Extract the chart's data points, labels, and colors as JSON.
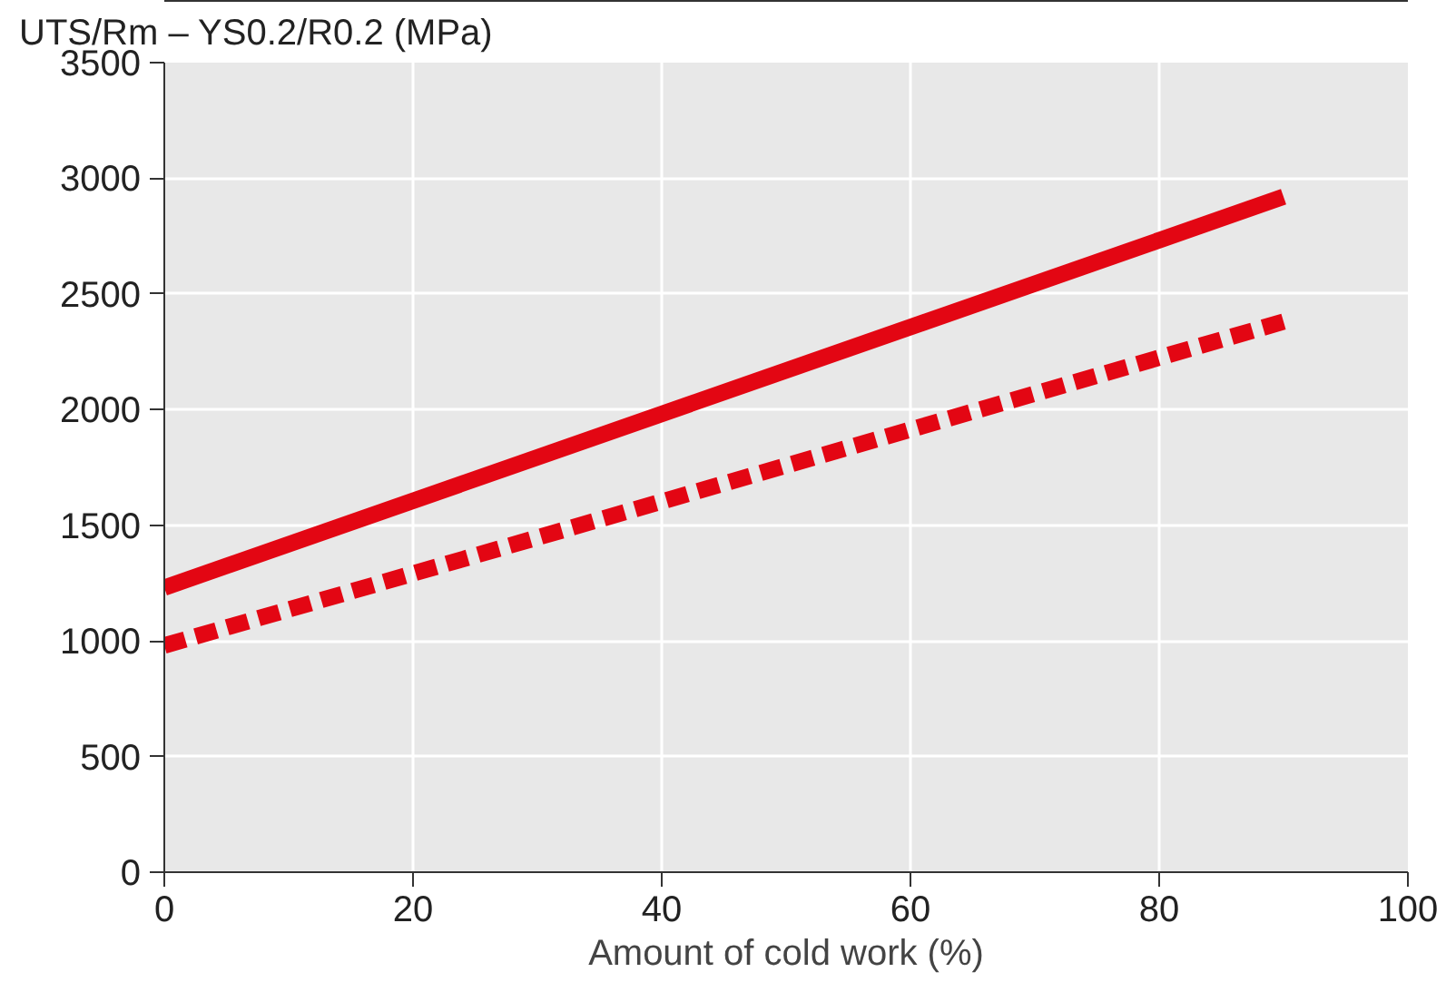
{
  "chart_data": {
    "type": "line",
    "ylabel": "UTS/Rm – YS0.2/R0.2 (MPa)",
    "xlabel": "Amount of cold work (%)",
    "x": [
      0,
      90
    ],
    "series": [
      {
        "color": "#e30613",
        "values": [
          1230,
          2920
        ],
        "line_style": "solid"
      },
      {
        "color": "#e30613",
        "values": [
          980,
          2380
        ],
        "line_style": "dashed"
      }
    ],
    "xlim": [
      0,
      100
    ],
    "xticks": [
      0,
      20,
      40,
      60,
      80,
      100
    ],
    "ylim": [
      0,
      3500
    ],
    "yticks": [
      0,
      500,
      1000,
      1500,
      2000,
      2500,
      3000,
      3500
    ],
    "grid": true,
    "marker": "none"
  }
}
